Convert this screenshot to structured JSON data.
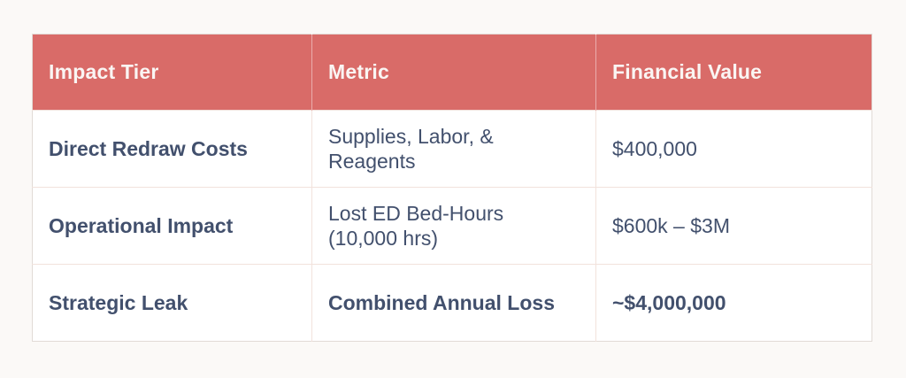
{
  "page": {
    "background_color": "#FBF9F7"
  },
  "table": {
    "header": {
      "bg_color": "#D96B68",
      "text_color": "#FAF5F3",
      "columns": [
        "Impact Tier",
        "Metric",
        "Financial Value"
      ]
    },
    "body_text_color": "#42506D",
    "rows": [
      {
        "impact_tier": "Direct Redraw Costs",
        "metric": "Supplies, Labor, &\nReagents",
        "financial_value": "$400,000"
      },
      {
        "impact_tier": "Operational Impact",
        "metric": "Lost ED Bed-Hours\n(10,000 hrs)",
        "financial_value": "$600k – $3M"
      },
      {
        "impact_tier": "Strategic Leak",
        "metric": "Combined Annual Loss",
        "financial_value": "~$4,000,000"
      }
    ]
  },
  "chart_data": {
    "type": "table",
    "title": "",
    "columns": [
      "Impact Tier",
      "Metric",
      "Financial Value"
    ],
    "rows": [
      [
        "Direct Redraw Costs",
        "Supplies, Labor, & Reagents",
        "$400,000"
      ],
      [
        "Operational Impact",
        "Lost ED Bed-Hours (10,000 hrs)",
        "$600k – $3M"
      ],
      [
        "Strategic Leak",
        "Combined Annual Loss",
        "~$4,000,000"
      ]
    ],
    "notes": {
      "header_style": "bold white text on salmon background",
      "emphasis": "first column bold in every row; entire last row bold",
      "legend_position": "none",
      "grid": "light pink cell dividers"
    }
  }
}
